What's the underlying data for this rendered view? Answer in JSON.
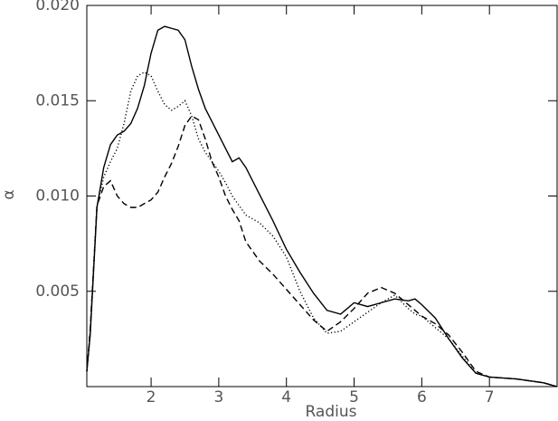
{
  "chart_data": {
    "type": "line",
    "x_label": "Radius",
    "y_label": "α",
    "xlim": [
      1.05,
      8
    ],
    "ylim": [
      0,
      0.02
    ],
    "xticks": [
      2,
      3,
      4,
      5,
      6,
      7
    ],
    "yticks": [
      {
        "value": 0.005,
        "label": "0.005"
      },
      {
        "value": 0.01,
        "label": "0.010"
      },
      {
        "value": 0.015,
        "label": "0.015"
      },
      {
        "value": 0.02,
        "label": "0.020"
      }
    ],
    "x": [
      1.05,
      1.1,
      1.2,
      1.3,
      1.4,
      1.5,
      1.6,
      1.7,
      1.8,
      1.9,
      2.0,
      2.1,
      2.2,
      2.3,
      2.4,
      2.5,
      2.6,
      2.7,
      2.8,
      2.9,
      3.0,
      3.1,
      3.2,
      3.3,
      3.4,
      3.6,
      3.8,
      4.0,
      4.2,
      4.4,
      4.6,
      4.8,
      5.0,
      5.2,
      5.4,
      5.6,
      5.8,
      5.9,
      6.0,
      6.2,
      6.4,
      6.6,
      6.8,
      7.0,
      7.4,
      7.8,
      8.0
    ],
    "series": [
      {
        "color": "#000000",
        "dash": "solid",
        "values": [
          0.0008,
          0.0027,
          0.0094,
          0.0115,
          0.0127,
          0.0132,
          0.0134,
          0.0138,
          0.0146,
          0.0158,
          0.0175,
          0.0187,
          0.0189,
          0.0188,
          0.0187,
          0.0182,
          0.0168,
          0.0156,
          0.0146,
          0.0139,
          0.0132,
          0.0125,
          0.0118,
          0.012,
          0.0115,
          0.0101,
          0.0087,
          0.0072,
          0.006,
          0.0049,
          0.004,
          0.0038,
          0.0044,
          0.0042,
          0.0044,
          0.0046,
          0.0045,
          0.0046,
          0.0043,
          0.0036,
          0.0025,
          0.0015,
          0.0007,
          0.0005,
          0.0004,
          0.0002,
          0.0
        ]
      },
      {
        "color": "#000000",
        "dash": "dotted",
        "values": [
          0.0008,
          0.003,
          0.0095,
          0.011,
          0.0118,
          0.0125,
          0.0138,
          0.0155,
          0.0163,
          0.0165,
          0.0163,
          0.0155,
          0.0148,
          0.0145,
          0.0147,
          0.015,
          0.0142,
          0.013,
          0.0123,
          0.0118,
          0.0113,
          0.0107,
          0.01,
          0.0095,
          0.009,
          0.0086,
          0.0079,
          0.0068,
          0.005,
          0.0036,
          0.0028,
          0.0029,
          0.0034,
          0.0039,
          0.0044,
          0.0048,
          0.0041,
          0.0038,
          0.0037,
          0.0031,
          0.0025,
          0.0016,
          0.0007,
          0.0005,
          0.0004,
          0.0002,
          0.0
        ]
      },
      {
        "color": "#000000",
        "dash": "dashed",
        "values": [
          0.0008,
          0.003,
          0.0095,
          0.0105,
          0.0108,
          0.01,
          0.0096,
          0.0094,
          0.0094,
          0.0096,
          0.0098,
          0.0102,
          0.011,
          0.0117,
          0.0126,
          0.0137,
          0.0142,
          0.014,
          0.013,
          0.0118,
          0.011,
          0.01,
          0.0093,
          0.0087,
          0.0076,
          0.0066,
          0.0059,
          0.0051,
          0.0043,
          0.0035,
          0.0029,
          0.0034,
          0.0041,
          0.0049,
          0.0052,
          0.0049,
          0.0043,
          0.004,
          0.0037,
          0.0033,
          0.0027,
          0.0018,
          0.0008,
          0.0005,
          0.0004,
          0.0002,
          0.0
        ]
      }
    ]
  }
}
